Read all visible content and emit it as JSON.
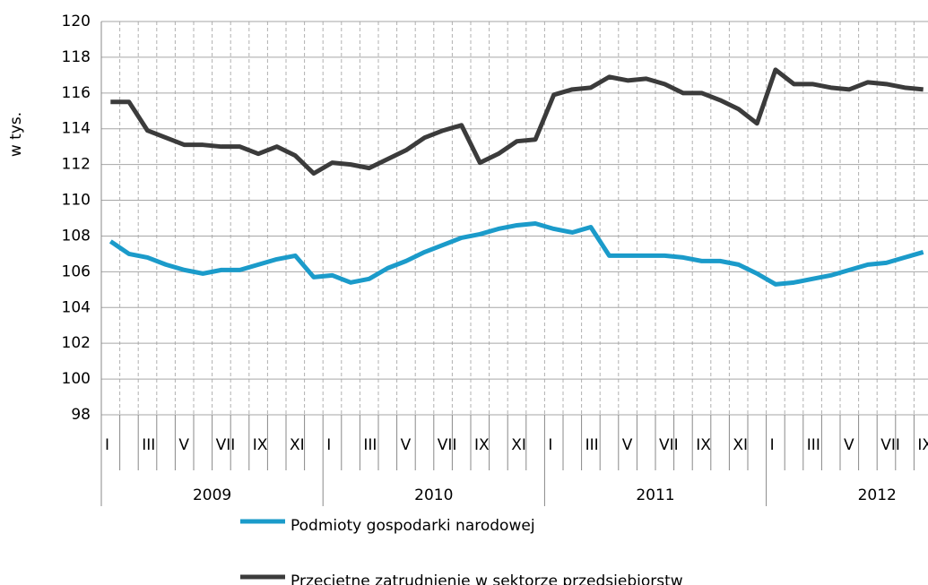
{
  "chart_data": {
    "type": "line",
    "y_label": "w tys.",
    "categories": [
      "I",
      null,
      "III",
      null,
      "V",
      null,
      "VII",
      null,
      "IX",
      null,
      "XI",
      null,
      "I",
      null,
      "III",
      null,
      "V",
      null,
      "VII",
      null,
      "IX",
      null,
      "XI",
      null,
      "I",
      null,
      "III",
      null,
      "V",
      null,
      "VII",
      null,
      "IX",
      null,
      "XI",
      null,
      "I",
      null,
      "III",
      null,
      "V",
      null,
      "VII",
      null,
      "IX"
    ],
    "year_labels": [
      "2009",
      "2010",
      "2011",
      "2012"
    ],
    "series": [
      {
        "name": "Podmioty gospodarki narodowej",
        "color": "#1b9bca",
        "values": [
          107.7,
          107.0,
          106.8,
          106.4,
          106.1,
          105.9,
          106.1,
          106.1,
          106.4,
          106.7,
          106.9,
          105.7,
          105.8,
          105.4,
          105.6,
          106.2,
          106.6,
          107.1,
          107.5,
          107.9,
          108.1,
          108.4,
          108.6,
          108.7,
          108.4,
          108.2,
          108.5,
          106.9,
          106.9,
          106.9,
          106.9,
          106.8,
          106.6,
          106.6,
          106.4,
          105.9,
          105.3,
          105.4,
          105.6,
          105.8,
          106.1,
          106.4,
          106.5,
          106.8,
          107.1
        ]
      },
      {
        "name": "Przeciętne zatrudnienie w sektorze przedsiębiorstw",
        "color": "#3b3b3b",
        "values": [
          115.5,
          115.5,
          113.9,
          113.5,
          113.1,
          113.1,
          113.0,
          113.0,
          112.6,
          113.0,
          112.5,
          111.5,
          112.1,
          112.0,
          111.8,
          112.3,
          112.8,
          113.5,
          113.9,
          114.2,
          112.1,
          112.6,
          113.3,
          113.4,
          115.9,
          116.2,
          116.3,
          116.9,
          116.7,
          116.8,
          116.5,
          116.0,
          116.0,
          115.6,
          115.1,
          114.3,
          117.3,
          116.5,
          116.5,
          116.3,
          116.2,
          116.6,
          116.5,
          116.3,
          116.2
        ]
      }
    ],
    "ylim": [
      98,
      120
    ],
    "yticks": [
      98,
      100,
      102,
      104,
      106,
      108,
      110,
      112,
      114,
      116,
      118,
      120
    ],
    "grid": true
  }
}
